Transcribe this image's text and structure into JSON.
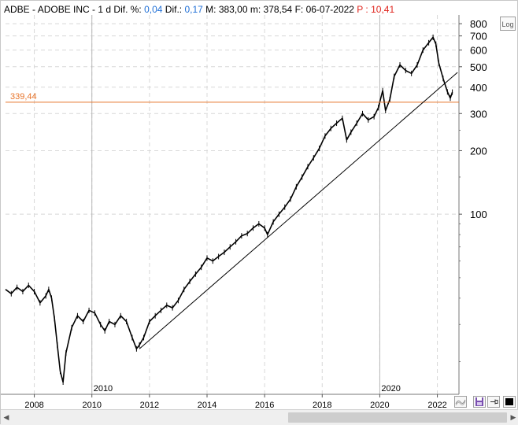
{
  "header": {
    "symbol": "ADBE",
    "sep1": " - ",
    "name": "ADOBE INC",
    "sep2": " -  ",
    "period": "1 d",
    "dif_pct_label": " Dif. %: ",
    "dif_pct_value": "0,04",
    "dif_label": " Dif.: ",
    "dif_value": "0,17",
    "max_label": " M: ",
    "max_value": "383,00",
    "min_label": " m: ",
    "min_value": "378,54",
    "date_label": " F: ",
    "date_value": "06-07-2022",
    "p_label": " P : ",
    "p_value": "10,41"
  },
  "log_button_label": "Log",
  "colors": {
    "price_line": "#000000",
    "horizontal_line": "#e8742a",
    "header_blue": "#1f6fd6",
    "header_red": "#e0231b",
    "grid": "#d8d8d8"
  },
  "icons": {
    "lines_tool": "wave-lines-icon",
    "save": "floppy-disk-icon",
    "pin": "pin-icon",
    "fill": "black-square-icon",
    "scroll_left": "chevron-left-icon",
    "scroll_right": "chevron-right-icon"
  },
  "chart_data": {
    "type": "line",
    "yscale": "log",
    "ylim": [
      14,
      880
    ],
    "xlim": [
      2007.0,
      2022.75
    ],
    "x_tick_labels": [
      "2008",
      "2010",
      "2012",
      "2014",
      "2016",
      "2018",
      "2020",
      "2022"
    ],
    "x_tick_values": [
      2008,
      2010,
      2012,
      2014,
      2016,
      2018,
      2020,
      2022
    ],
    "marker_labels": [
      "2010",
      "2020"
    ],
    "marker_values": [
      2010,
      2020
    ],
    "y_tick_labels": [
      "800",
      "700",
      "600",
      "500",
      "400",
      "300",
      "200",
      "100"
    ],
    "y_tick_values": [
      800,
      700,
      600,
      500,
      400,
      300,
      200,
      100
    ],
    "horizontal_line": {
      "label": "339,44",
      "value": 339.44
    },
    "trendline": {
      "from": [
        2011.65,
        23
      ],
      "to": [
        2022.7,
        470
      ]
    },
    "series": [
      {
        "x": [
          2007.0,
          2007.2,
          2007.4,
          2007.6,
          2007.8,
          2008.0,
          2008.2,
          2008.4,
          2008.5,
          2008.6,
          2008.7,
          2008.8,
          2008.9,
          2009.0,
          2009.1,
          2009.3,
          2009.5,
          2009.7,
          2009.9,
          2010.1,
          2010.3,
          2010.45,
          2010.6,
          2010.8,
          2011.0,
          2011.2,
          2011.4,
          2011.55,
          2011.65,
          2011.8,
          2012.0,
          2012.2,
          2012.4,
          2012.6,
          2012.8,
          2013.0,
          2013.2,
          2013.4,
          2013.6,
          2013.8,
          2014.0,
          2014.2,
          2014.4,
          2014.6,
          2014.8,
          2015.0,
          2015.2,
          2015.4,
          2015.6,
          2015.8,
          2016.0,
          2016.1,
          2016.3,
          2016.5,
          2016.7,
          2016.9,
          2017.1,
          2017.3,
          2017.5,
          2017.7,
          2017.9,
          2018.1,
          2018.3,
          2018.5,
          2018.7,
          2018.85,
          2019.0,
          2019.2,
          2019.4,
          2019.6,
          2019.8,
          2019.95,
          2020.1,
          2020.2,
          2020.35,
          2020.5,
          2020.7,
          2020.9,
          2021.1,
          2021.3,
          2021.5,
          2021.7,
          2021.85,
          2021.95,
          2022.05,
          2022.2,
          2022.35,
          2022.45,
          2022.52
        ],
        "values": [
          44,
          42,
          45,
          43,
          46,
          43,
          38,
          41,
          44,
          40,
          32,
          24,
          18,
          16,
          22,
          29,
          33,
          31,
          35,
          34,
          30,
          28,
          31,
          30,
          33,
          31,
          26,
          23,
          24,
          26,
          31,
          33,
          35,
          37,
          36,
          39,
          44,
          48,
          52,
          56,
          62,
          60,
          63,
          66,
          70,
          74,
          79,
          81,
          86,
          90,
          86,
          80,
          92,
          100,
          108,
          118,
          135,
          150,
          168,
          185,
          205,
          235,
          255,
          270,
          285,
          225,
          245,
          270,
          300,
          280,
          290,
          320,
          385,
          310,
          350,
          450,
          510,
          480,
          465,
          510,
          600,
          650,
          690,
          640,
          520,
          440,
          380,
          355,
          379
        ]
      }
    ]
  }
}
